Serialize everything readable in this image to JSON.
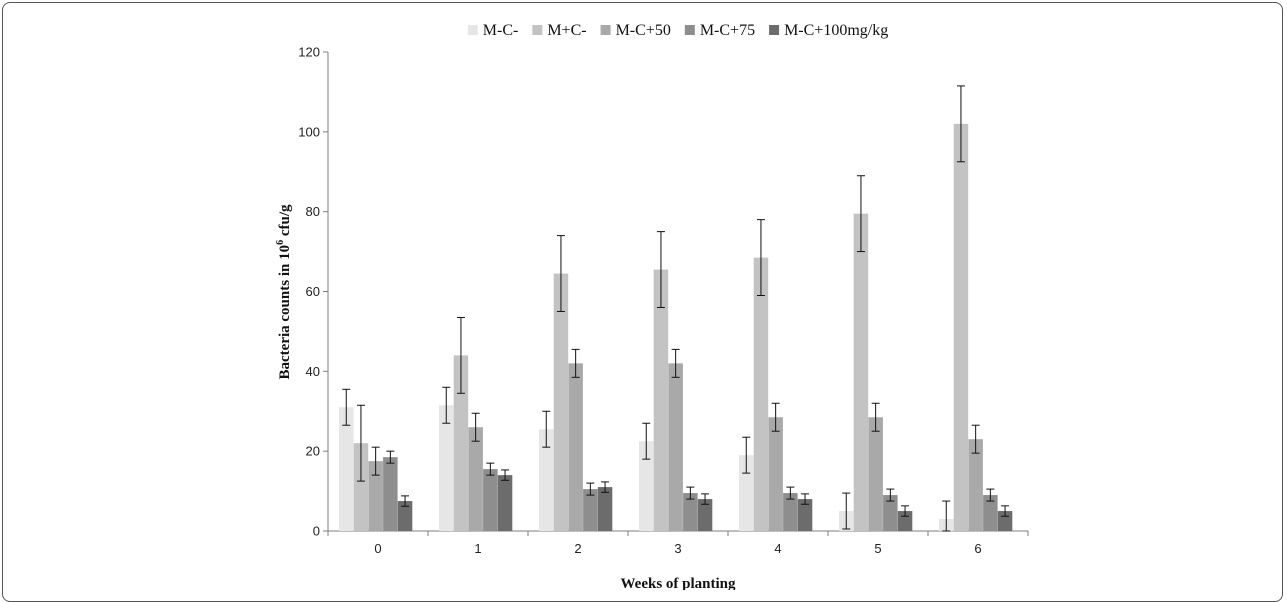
{
  "chart_data": {
    "type": "bar",
    "categories": [
      "0",
      "1",
      "2",
      "3",
      "4",
      "5",
      "6"
    ],
    "xlabel": "Weeks of planting",
    "ylabel_prefix": "Bacteria counts in 10",
    "ylabel_exponent": "6",
    "ylabel_suffix": " cfu/g",
    "ylim": [
      0,
      120
    ],
    "yticks": [
      0,
      20,
      40,
      60,
      80,
      100,
      120
    ],
    "grid": false,
    "legend_position": "top",
    "series": [
      {
        "name": "M-C-",
        "color": "#e6e6e6",
        "values": [
          31,
          31.5,
          25.5,
          22.5,
          19,
          5,
          3
        ],
        "errors": [
          4.5,
          4.5,
          4.5,
          4.5,
          4.5,
          4.5,
          4.5
        ]
      },
      {
        "name": "M+C-",
        "color": "#c3c3c3",
        "values": [
          22,
          44,
          64.5,
          65.5,
          68.5,
          79.5,
          102
        ],
        "errors": [
          9.5,
          9.5,
          9.5,
          9.5,
          9.5,
          9.5,
          9.5
        ]
      },
      {
        "name": "M-C+50",
        "color": "#a9a9a9",
        "values": [
          17.5,
          26,
          42,
          42,
          28.5,
          28.5,
          23
        ],
        "errors": [
          3.5,
          3.5,
          3.5,
          3.5,
          3.5,
          3.5,
          3.5
        ]
      },
      {
        "name": "M-C+75",
        "color": "#8e8e8e",
        "values": [
          18.5,
          15.5,
          10.5,
          9.5,
          9.5,
          9,
          9
        ],
        "errors": [
          1.5,
          1.5,
          1.5,
          1.5,
          1.5,
          1.5,
          1.5
        ]
      },
      {
        "name": "M-C+100mg/kg",
        "color": "#6c6c6c",
        "values": [
          7.5,
          14,
          11,
          8,
          8,
          5,
          5
        ],
        "errors": [
          1.3,
          1.3,
          1.3,
          1.3,
          1.3,
          1.3,
          1.3
        ]
      }
    ]
  }
}
